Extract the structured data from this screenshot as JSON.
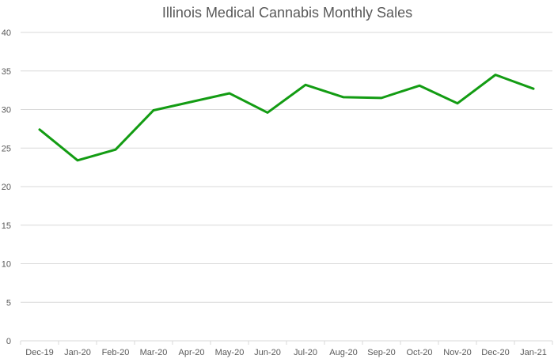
{
  "chart_data": {
    "type": "line",
    "title": "Illinois Medical Cannabis Monthly Sales",
    "xlabel": "",
    "ylabel": "",
    "categories": [
      "Dec-19",
      "Jan-20",
      "Feb-20",
      "Mar-20",
      "Apr-20",
      "May-20",
      "Jun-20",
      "Jul-20",
      "Aug-20",
      "Sep-20",
      "Oct-20",
      "Nov-20",
      "Dec-20",
      "Jan-21"
    ],
    "series": [
      {
        "name": "Sales",
        "color": "#139c13",
        "values": [
          27.4,
          23.4,
          24.8,
          29.9,
          31.0,
          32.1,
          29.6,
          33.2,
          31.6,
          31.5,
          33.1,
          30.8,
          34.5,
          32.7
        ]
      }
    ],
    "ylim": [
      0,
      40
    ],
    "yticks": [
      0,
      5,
      10,
      15,
      20,
      25,
      30,
      35,
      40
    ],
    "ytick_labels": [
      "0",
      "5",
      "10",
      "15",
      "20",
      "25",
      "30",
      "35",
      "40"
    ],
    "grid": true,
    "legend": "none"
  }
}
